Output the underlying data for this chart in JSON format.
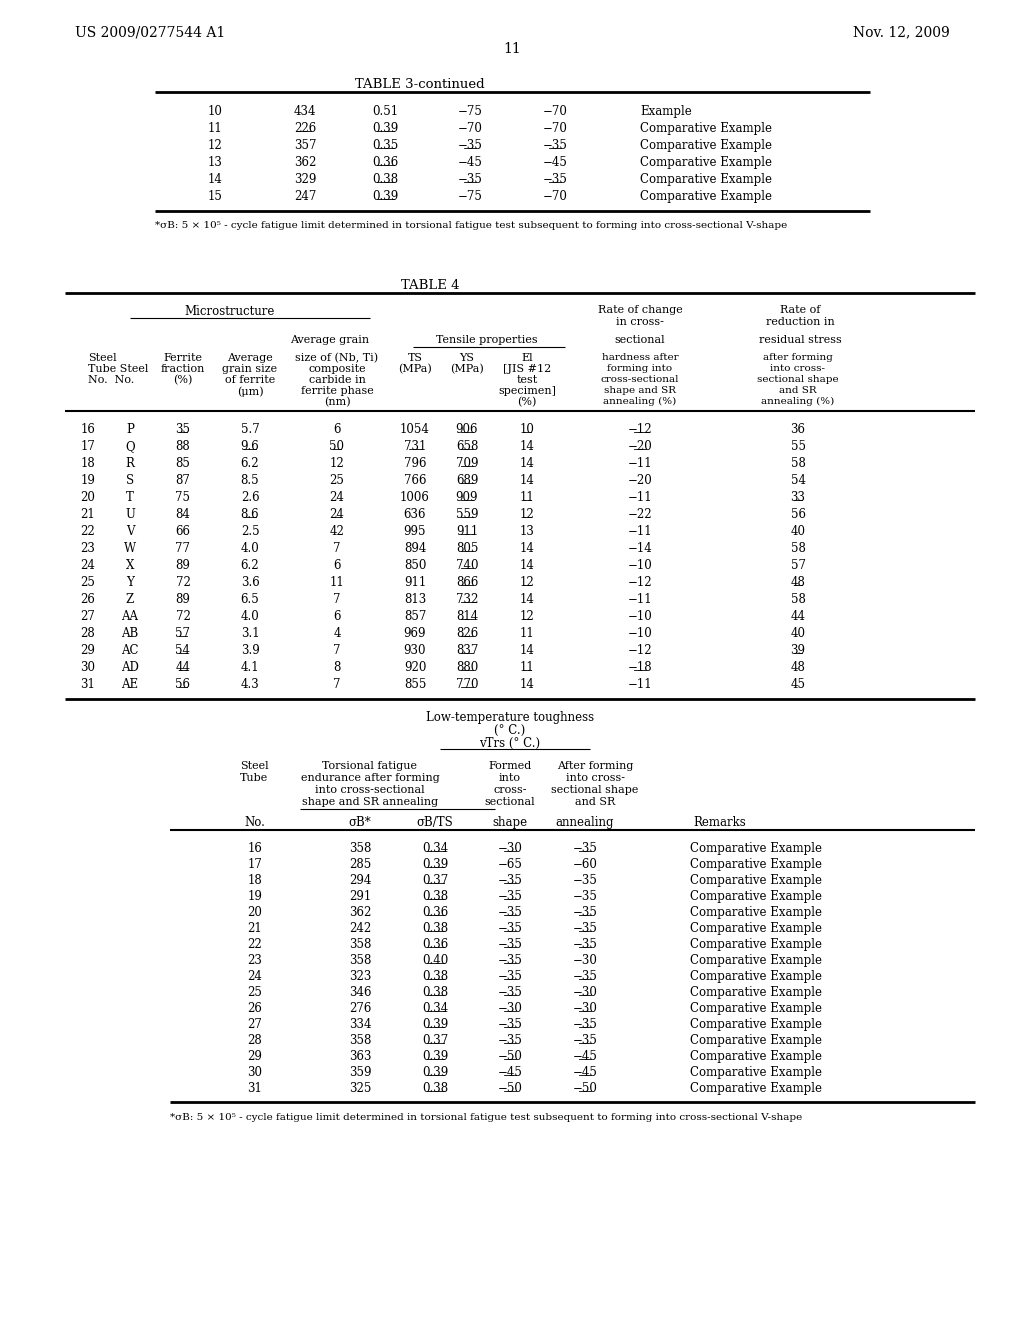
{
  "page_header_left": "US 2009/0277544 A1",
  "page_header_right": "Nov. 12, 2009",
  "page_number": "11",
  "background_color": "#ffffff",
  "table3_title": "TABLE 3-continued",
  "table3_data": [
    [
      "10",
      "434",
      "0.51",
      "−75",
      "−70",
      "Example"
    ],
    [
      "11",
      "226",
      "0.39",
      "−70",
      "−70",
      "Comparative Example"
    ],
    [
      "12",
      "357",
      "0.35",
      "−35",
      "−35",
      "Comparative Example"
    ],
    [
      "13",
      "362",
      "0.36",
      "−45",
      "−45",
      "Comparative Example"
    ],
    [
      "14",
      "329",
      "0.38",
      "−35",
      "−35",
      "Comparative Example"
    ],
    [
      "15",
      "247",
      "0.39",
      "−75",
      "−70",
      "Comparative Example"
    ]
  ],
  "table3_ul_col1": [
    false,
    true,
    false,
    false,
    false,
    false
  ],
  "table3_ul_col2": [
    false,
    true,
    true,
    true,
    true,
    true
  ],
  "table3_ul_col3": [
    false,
    false,
    true,
    false,
    true,
    false
  ],
  "table3_ul_col4": [
    false,
    false,
    true,
    false,
    true,
    false
  ],
  "table3_footnote": "*σB: 5 × 10⁵ - cycle fatigue limit determined in torsional fatigue test subsequent to forming into cross-sectional V-shape",
  "table4_title": "TABLE 4",
  "table4_data": [
    [
      "16",
      "P",
      "35",
      "5.7",
      "6",
      "1054",
      "906",
      "10",
      "−12",
      "36"
    ],
    [
      "17",
      "Q",
      "88",
      "9.6",
      "50",
      "731",
      "658",
      "14",
      "−20",
      "55"
    ],
    [
      "18",
      "R",
      "85",
      "6.2",
      "12",
      "796",
      "709",
      "14",
      "−11",
      "58"
    ],
    [
      "19",
      "S",
      "87",
      "8.5",
      "25",
      "766",
      "689",
      "14",
      "−20",
      "54"
    ],
    [
      "20",
      "T",
      "75",
      "2.6",
      "24",
      "1006",
      "909",
      "11",
      "−11",
      "33"
    ],
    [
      "21",
      "U",
      "84",
      "8.6",
      "24",
      "636",
      "559",
      "12",
      "−22",
      "56"
    ],
    [
      "22",
      "V",
      "66",
      "2.5",
      "42",
      "995",
      "911",
      "13",
      "−11",
      "40"
    ],
    [
      "23",
      "W",
      "77",
      "4.0",
      "7",
      "894",
      "805",
      "14",
      "−14",
      "58"
    ],
    [
      "24",
      "X",
      "89",
      "6.2",
      "6",
      "850",
      "740",
      "14",
      "−10",
      "57"
    ],
    [
      "25",
      "Y",
      "72",
      "3.6",
      "11",
      "911",
      "866",
      "12",
      "−12",
      "48"
    ],
    [
      "26",
      "Z",
      "89",
      "6.5",
      "7",
      "813",
      "732",
      "14",
      "−11",
      "58"
    ],
    [
      "27",
      "AA",
      "72",
      "4.0",
      "6",
      "857",
      "814",
      "12",
      "−10",
      "44"
    ],
    [
      "28",
      "AB",
      "57",
      "3.1",
      "4",
      "969",
      "826",
      "11",
      "−10",
      "40"
    ],
    [
      "29",
      "AC",
      "54",
      "3.9",
      "7",
      "930",
      "837",
      "14",
      "−12",
      "39"
    ],
    [
      "30",
      "AD",
      "44",
      "4.1",
      "8",
      "920",
      "880",
      "11",
      "−18",
      "48"
    ],
    [
      "31",
      "AE",
      "56",
      "4.3",
      "7",
      "855",
      "770",
      "14",
      "−11",
      "45"
    ]
  ],
  "table4_ul": {
    "c2": [
      true,
      false,
      false,
      false,
      false,
      false,
      false,
      false,
      false,
      false,
      false,
      false,
      true,
      true,
      true,
      true
    ],
    "c3": [
      false,
      true,
      false,
      false,
      false,
      true,
      false,
      false,
      false,
      false,
      false,
      false,
      false,
      false,
      false,
      false
    ],
    "c4": [
      false,
      true,
      false,
      false,
      false,
      true,
      false,
      false,
      false,
      false,
      false,
      false,
      false,
      false,
      false,
      false
    ],
    "c5": [
      false,
      true,
      false,
      false,
      false,
      false,
      false,
      false,
      false,
      false,
      false,
      false,
      false,
      false,
      false,
      false
    ],
    "c7": [
      true,
      true,
      true,
      true,
      true,
      true,
      true,
      true,
      true,
      true,
      true,
      true,
      true,
      true,
      true,
      true
    ],
    "c8": [
      true,
      false,
      false,
      false,
      true,
      true,
      false,
      false,
      false,
      true,
      false,
      true,
      false,
      false,
      true,
      false
    ],
    "c9": [
      true,
      true,
      false,
      false,
      false,
      false,
      false,
      false,
      false,
      false,
      false,
      false,
      false,
      false,
      true,
      false
    ],
    "c10": [
      false,
      false,
      false,
      false,
      true,
      false,
      false,
      false,
      false,
      true,
      false,
      false,
      false,
      true,
      false,
      false
    ]
  },
  "table4b_data": [
    [
      "16",
      "358",
      "0.34",
      "−30",
      "−35",
      "Comparative Example"
    ],
    [
      "17",
      "285",
      "0.39",
      "−65",
      "−60",
      "Comparative Example"
    ],
    [
      "18",
      "294",
      "0.37",
      "−35",
      "−35",
      "Comparative Example"
    ],
    [
      "19",
      "291",
      "0.38",
      "−35",
      "−35",
      "Comparative Example"
    ],
    [
      "20",
      "362",
      "0.36",
      "−35",
      "−35",
      "Comparative Example"
    ],
    [
      "21",
      "242",
      "0.38",
      "−35",
      "−35",
      "Comparative Example"
    ],
    [
      "22",
      "358",
      "0.36",
      "−35",
      "−35",
      "Comparative Example"
    ],
    [
      "23",
      "358",
      "0.40",
      "−35",
      "−30",
      "Comparative Example"
    ],
    [
      "24",
      "323",
      "0.38",
      "−35",
      "−35",
      "Comparative Example"
    ],
    [
      "25",
      "346",
      "0.38",
      "−35",
      "−30",
      "Comparative Example"
    ],
    [
      "26",
      "276",
      "0.34",
      "−30",
      "−30",
      "Comparative Example"
    ],
    [
      "27",
      "334",
      "0.39",
      "−35",
      "−35",
      "Comparative Example"
    ],
    [
      "28",
      "358",
      "0.37",
      "−35",
      "−35",
      "Comparative Example"
    ],
    [
      "29",
      "363",
      "0.39",
      "−50",
      "−45",
      "Comparative Example"
    ],
    [
      "30",
      "359",
      "0.39",
      "−45",
      "−45",
      "Comparative Example"
    ],
    [
      "31",
      "325",
      "0.38",
      "−50",
      "−50",
      "Comparative Example"
    ]
  ],
  "table4b_ul": {
    "c2": [
      false,
      false,
      false,
      false,
      false,
      false,
      false,
      false,
      false,
      false,
      false,
      false,
      false,
      false,
      false,
      false
    ],
    "c3": [
      true,
      true,
      true,
      true,
      true,
      true,
      true,
      true,
      true,
      true,
      true,
      true,
      true,
      true,
      true,
      true
    ],
    "c4": [
      true,
      false,
      true,
      true,
      true,
      true,
      true,
      true,
      true,
      true,
      true,
      true,
      true,
      true,
      true,
      true
    ],
    "c5": [
      true,
      false,
      false,
      false,
      true,
      true,
      true,
      false,
      true,
      true,
      true,
      true,
      true,
      true,
      true,
      true
    ]
  },
  "table4b_footnote": "*σB: 5 × 10⁵ - cycle fatigue limit determined in torsional fatigue test subsequent to forming into cross-sectional V-shape"
}
